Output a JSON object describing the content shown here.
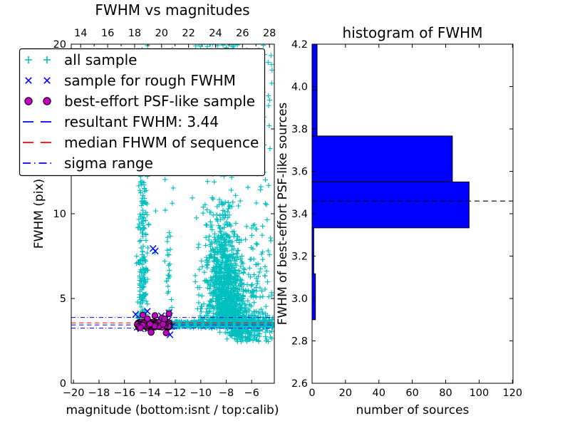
{
  "chart_data": [
    {
      "type": "scatter",
      "title": "FWHM vs magnitudes",
      "xlabel": "magnitude (bottom:isnt / top:calib)",
      "ylabel": "FWHM (pix)",
      "xlim_bottom": [
        -20.18,
        -4.22
      ],
      "xlim_top": [
        13.3,
        28.36
      ],
      "ylim": [
        0,
        20
      ],
      "x_bottom_ticks": [
        -20,
        -18,
        -16,
        -14,
        -12,
        -10,
        -8,
        -6
      ],
      "x_top_ticks": [
        14,
        16,
        18,
        20,
        22,
        24,
        26,
        28
      ],
      "x_top_minor_ticks": [
        15,
        17,
        19,
        21,
        23,
        25,
        27
      ],
      "y_ticks": [
        0,
        5,
        10,
        15,
        20
      ],
      "series": [
        {
          "name": "all sample",
          "marker": "+",
          "color": "#00bfbf",
          "clusters": [
            {
              "n": 65,
              "x": {
                "d": "n",
                "mu": -14.55,
                "sd": 0.18,
                "lo": -15.0,
                "hi": -14.1
              },
              "y": {
                "d": "u",
                "lo": 4.0,
                "hi": 7.8
              }
            },
            {
              "n": 25,
              "x": {
                "d": "n",
                "mu": -14.6,
                "sd": 0.14
              },
              "y": {
                "d": "n",
                "mu": 5.6,
                "sd": 0.8
              }
            },
            {
              "n": 45,
              "x": {
                "d": "n",
                "mu": -14.52,
                "sd": 0.19
              },
              "y": {
                "d": "u",
                "lo": 7.8,
                "hi": 13.5
              }
            },
            {
              "n": 25,
              "x": {
                "d": "n",
                "mu": -14.6,
                "sd": 0.15
              },
              "y": {
                "d": "n",
                "mu": 10.5,
                "sd": 1.2
              }
            },
            {
              "n": 45,
              "x": {
                "d": "n",
                "mu": -14.5,
                "sd": 0.22
              },
              "y": {
                "d": "u",
                "lo": 13.5,
                "hi": 20.3
              }
            },
            {
              "n": 30,
              "x": {
                "d": "u",
                "lo": -15.2,
                "hi": -13.4
              },
              "y": {
                "d": "u",
                "lo": 3.8,
                "hi": 20.2
              }
            },
            {
              "n": 12,
              "x": {
                "d": "n",
                "mu": -14.82,
                "sd": 0.12
              },
              "y": {
                "d": "u",
                "lo": 3.55,
                "hi": 4.3
              }
            },
            {
              "n": 26,
              "x": {
                "d": "n",
                "mu": -12.48,
                "sd": 0.18
              },
              "y": {
                "d": "u",
                "lo": 4.3,
                "hi": 20.3
              }
            },
            {
              "n": 16,
              "x": {
                "d": "n",
                "mu": -12.55,
                "sd": 0.15
              },
              "y": {
                "d": "u",
                "lo": 3.8,
                "hi": 9.0
              }
            },
            {
              "n": 160,
              "x": {
                "d": "u",
                "lo": -11.8,
                "hi": -4.4
              },
              "y": {
                "d": "u",
                "lo": 12.5,
                "hi": 20.35
              }
            },
            {
              "n": 200,
              "x": {
                "d": "n",
                "mu": -8.55,
                "sd": 0.8,
                "lo": -10.3,
                "hi": -6.3
              },
              "y": {
                "d": "u",
                "lo": 15.5,
                "hi": 20.35
              }
            },
            {
              "n": 620,
              "x": {
                "d": "n",
                "mu": -8.6,
                "sd": 0.65,
                "lo": -10.5,
                "hi": -6.2
              },
              "y": {
                "d": "hn",
                "base": 3.65,
                "sd": 3.0,
                "hi": 15.5
              },
              "tilt": {
                "ref": 12,
                "k": 0.1
              }
            },
            {
              "n": 380,
              "x": {
                "d": "n",
                "mu": -8.5,
                "sd": 1.25,
                "lo": -11.0,
                "hi": -5.3
              },
              "y": {
                "d": "hn",
                "base": 3.7,
                "sd": 3.3,
                "hi": 15.5
              },
              "tilt": {
                "ref": 12,
                "k": 0.08
              }
            },
            {
              "n": 200,
              "x": {
                "d": "n",
                "mu": -6.9,
                "sd": 0.55,
                "lo": -8.2,
                "hi": -5.4
              },
              "y": {
                "d": "n",
                "mu": 3.35,
                "sd": 0.42,
                "lo": 2.55,
                "hi": 4.3
              }
            },
            {
              "n": 700,
              "x": {
                "d": "u",
                "lo": -12.35,
                "hi": -4.33
              },
              "y": {
                "d": "n",
                "mu": 3.48,
                "sd": 0.08,
                "lo": 3.25,
                "hi": 3.75
              }
            },
            {
              "n": 150,
              "x": {
                "d": "u",
                "lo": -10.0,
                "hi": -4.33
              },
              "y": {
                "d": "n",
                "mu": 3.6,
                "sd": 0.25,
                "lo": 3.0,
                "hi": 4.6
              }
            },
            {
              "n": 50,
              "x": {
                "d": "n",
                "mu": -6.0,
                "sd": 1.0,
                "lo": -8.6,
                "hi": -4.33
              },
              "y": {
                "d": "u",
                "lo": 2.45,
                "hi": 3.2
              }
            },
            {
              "n": 45,
              "x": {
                "d": "u",
                "lo": -6.2,
                "hi": -4.33
              },
              "y": {
                "d": "u",
                "lo": 4.3,
                "hi": 12.5
              }
            }
          ]
        },
        {
          "name": "sample for rough FWHM",
          "marker": "x",
          "color": "#0000ff",
          "clusters": [
            {
              "n": 13,
              "x": {
                "d": "u",
                "lo": -15.15,
                "hi": -12.45
              },
              "y": {
                "d": "n",
                "mu": 3.55,
                "sd": 0.22,
                "lo": 3.05,
                "hi": 4.1
              }
            }
          ],
          "points": [
            [
              -13.75,
              7.95
            ],
            [
              -13.58,
              7.8
            ],
            [
              -12.42,
              2.86
            ],
            [
              -12.5,
              4.15
            ],
            [
              -12.3,
              3.35
            ],
            [
              -14.2,
              4.25
            ],
            [
              -12.62,
              3.05
            ],
            [
              -15.0,
              3.3
            ],
            [
              -14.4,
              3.78
            ]
          ]
        },
        {
          "name": "best-effort PSF-like sample",
          "marker": "o",
          "color": "#bf00bf",
          "edge": "#000000",
          "clusters": [
            {
              "n": 150,
              "x": {
                "d": "u",
                "lo": -15.0,
                "hi": -12.45
              },
              "y": {
                "d": "n",
                "mu": 3.45,
                "sd": 0.085,
                "lo": 3.27,
                "hi": 3.63
              }
            },
            {
              "n": 60,
              "x": {
                "d": "n",
                "mu": -13.7,
                "sd": 0.55,
                "lo": -14.9,
                "hi": -12.5
              },
              "y": {
                "d": "n",
                "mu": 3.49,
                "sd": 0.07,
                "lo": 3.3,
                "hi": 3.63
              }
            }
          ],
          "points": [
            [
              -12.5,
              4.1
            ],
            [
              -14.55,
              4.02
            ],
            [
              -13.6,
              3.99
            ],
            [
              -13.05,
              3.85
            ],
            [
              -14.2,
              3.81
            ],
            [
              -12.85,
              3.79
            ],
            [
              -14.75,
              3.28
            ],
            [
              -12.72,
              2.97
            ],
            [
              -13.9,
              3.0
            ]
          ]
        }
      ],
      "lines": [
        {
          "name": "resultant FWHM: 3.44",
          "y": [
            3.44
          ],
          "style": "dashed",
          "color": "#0000ff"
        },
        {
          "name": "median FHWM of sequence",
          "y": [
            3.56
          ],
          "style": "dashed",
          "color": "#ff0000"
        },
        {
          "name": "sigma range",
          "y": [
            3.25,
            3.88
          ],
          "style": "dashdot",
          "color": "#0000ff"
        }
      ]
    },
    {
      "type": "bar-horizontal",
      "title": "histogram of FWHM",
      "xlabel": "number of sources",
      "ylabel": "FWHM of best-effort PSF-like sources",
      "xlim": [
        0,
        120.3
      ],
      "ylim": [
        2.6,
        4.2
      ],
      "x_ticks": [
        0,
        20,
        40,
        60,
        80,
        100,
        120
      ],
      "y_ticks": [
        2.6,
        2.8,
        3.0,
        3.2,
        3.4,
        3.6,
        3.8,
        4.0,
        4.2
      ],
      "bin_edges": [
        2.9,
        3.1167,
        3.3333,
        3.55,
        3.7667,
        3.9833,
        4.2
      ],
      "counts": [
        2,
        1,
        94,
        84,
        3,
        3
      ],
      "bar_color": "#0000ff",
      "bar_edge_color": "#000000",
      "dashed_line": {
        "y": 3.46,
        "color": "#000000",
        "style": "dashed"
      }
    }
  ]
}
